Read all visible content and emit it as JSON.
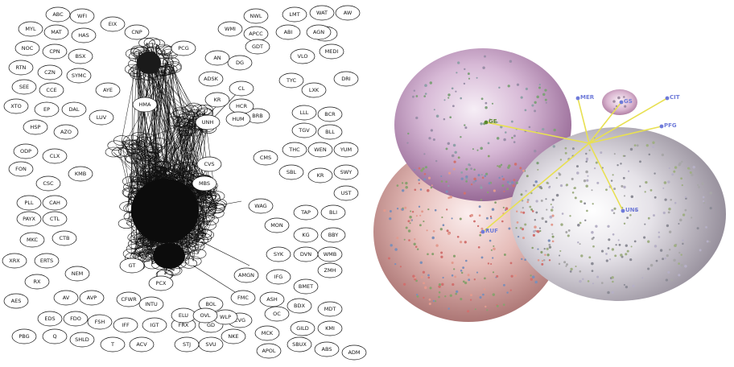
{
  "left_panel": {
    "peripheral_nodes": [
      "ABC",
      "WFI",
      "MYL",
      "MAT",
      "HAS",
      "NOC",
      "CPN",
      "BSX",
      "RTN",
      "CZN",
      "SYMC",
      "SEE",
      "CCE",
      "XTO",
      "EP",
      "DAL",
      "LUV",
      "HSP",
      "AZO",
      "ODP",
      "CLX",
      "FON",
      "KMB",
      "CSC",
      "PLL",
      "CAH",
      "PAYX",
      "CTL",
      "MKC",
      "CTB",
      "XRX",
      "ERTS",
      "RX",
      "NEM",
      "AES",
      "AV",
      "AVP",
      "EDS",
      "FDO",
      "FSH",
      "PBG",
      "Q",
      "SHLD",
      "IFF",
      "IGT",
      "FRX",
      "GD",
      "T",
      "ACV",
      "STJ",
      "SVU",
      "NKE",
      "CFWR",
      "INTU",
      "BOL",
      "CVG",
      "OC",
      "MCK",
      "APOL",
      "SBUX",
      "ABS",
      "ADM",
      "MDT",
      "GILD",
      "KMI",
      "BDX",
      "ASH",
      "FMC",
      "AMGN",
      "IFG",
      "BMET",
      "ZMH",
      "SYK",
      "DVN",
      "WMB",
      "KG",
      "BBY",
      "TAP",
      "BLI",
      "MON",
      "UST",
      "SBL",
      "KR",
      "SWY",
      "THC",
      "WEN",
      "YUM",
      "TGV",
      "BLL",
      "LLL",
      "BCR",
      "LXK",
      "DRI",
      "TYC",
      "VLO",
      "MEDI",
      "ABI",
      "BIIB",
      "LMT",
      "WAT",
      "AW",
      "AGN",
      "APCC",
      "NWL",
      "WMI",
      "GDT",
      "DG",
      "AN",
      "ADSK",
      "BRB",
      "HMA",
      "AYE",
      "EIX",
      "CNP",
      "PCG",
      "CMS",
      "MBS",
      "WAG",
      "CVS",
      "KR",
      "CL",
      "HCR",
      "HUM",
      "UNH",
      "WLP",
      "GT",
      "PCX",
      "ELU",
      "OVL"
    ]
  },
  "right_panel": {
    "hubs": [
      "GE",
      "MER",
      "GS",
      "CIT",
      "PFG",
      "UNS",
      "RUF"
    ],
    "colors": {
      "sphere_top_left": "#c7a8c8",
      "sphere_bottom_left": "#e3b0ac",
      "sphere_right": "#d8d4dc",
      "sphere_small": "#d9b4cf",
      "edge": "#e8e052",
      "hub_label": "#6f7bd9",
      "hub_label_green": "#5a8a2c"
    }
  }
}
